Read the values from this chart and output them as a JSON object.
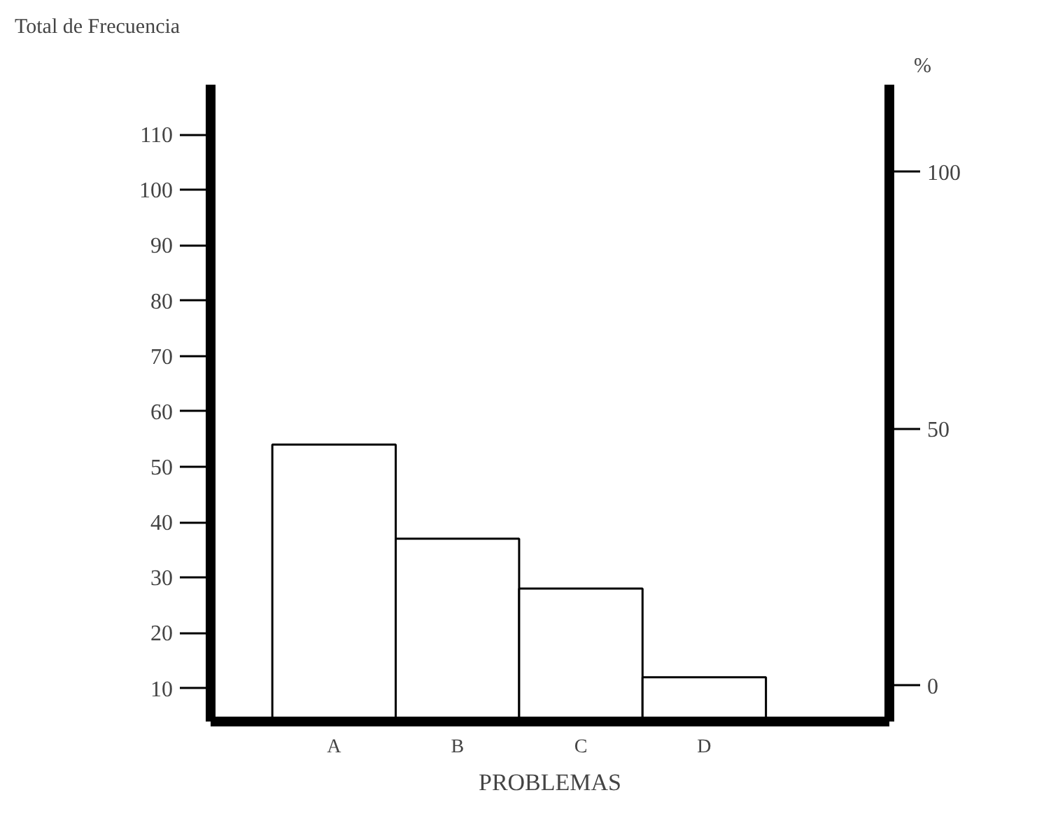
{
  "chart_data": {
    "type": "bar",
    "categories": [
      "A",
      "B",
      "C",
      "D"
    ],
    "values": [
      54,
      37,
      28,
      12
    ],
    "color": "#ffffff",
    "xlabel": "PROBLEMAS",
    "ylabel": "Total de Frecuencia",
    "y2label": "%",
    "ylim": [
      4,
      119
    ],
    "yticks": [
      10,
      20,
      30,
      40,
      50,
      60,
      70,
      80,
      90,
      100,
      110
    ],
    "y2lim": [
      -7,
      117
    ],
    "y2ticks": [
      0,
      50,
      100
    ],
    "grid": false
  }
}
